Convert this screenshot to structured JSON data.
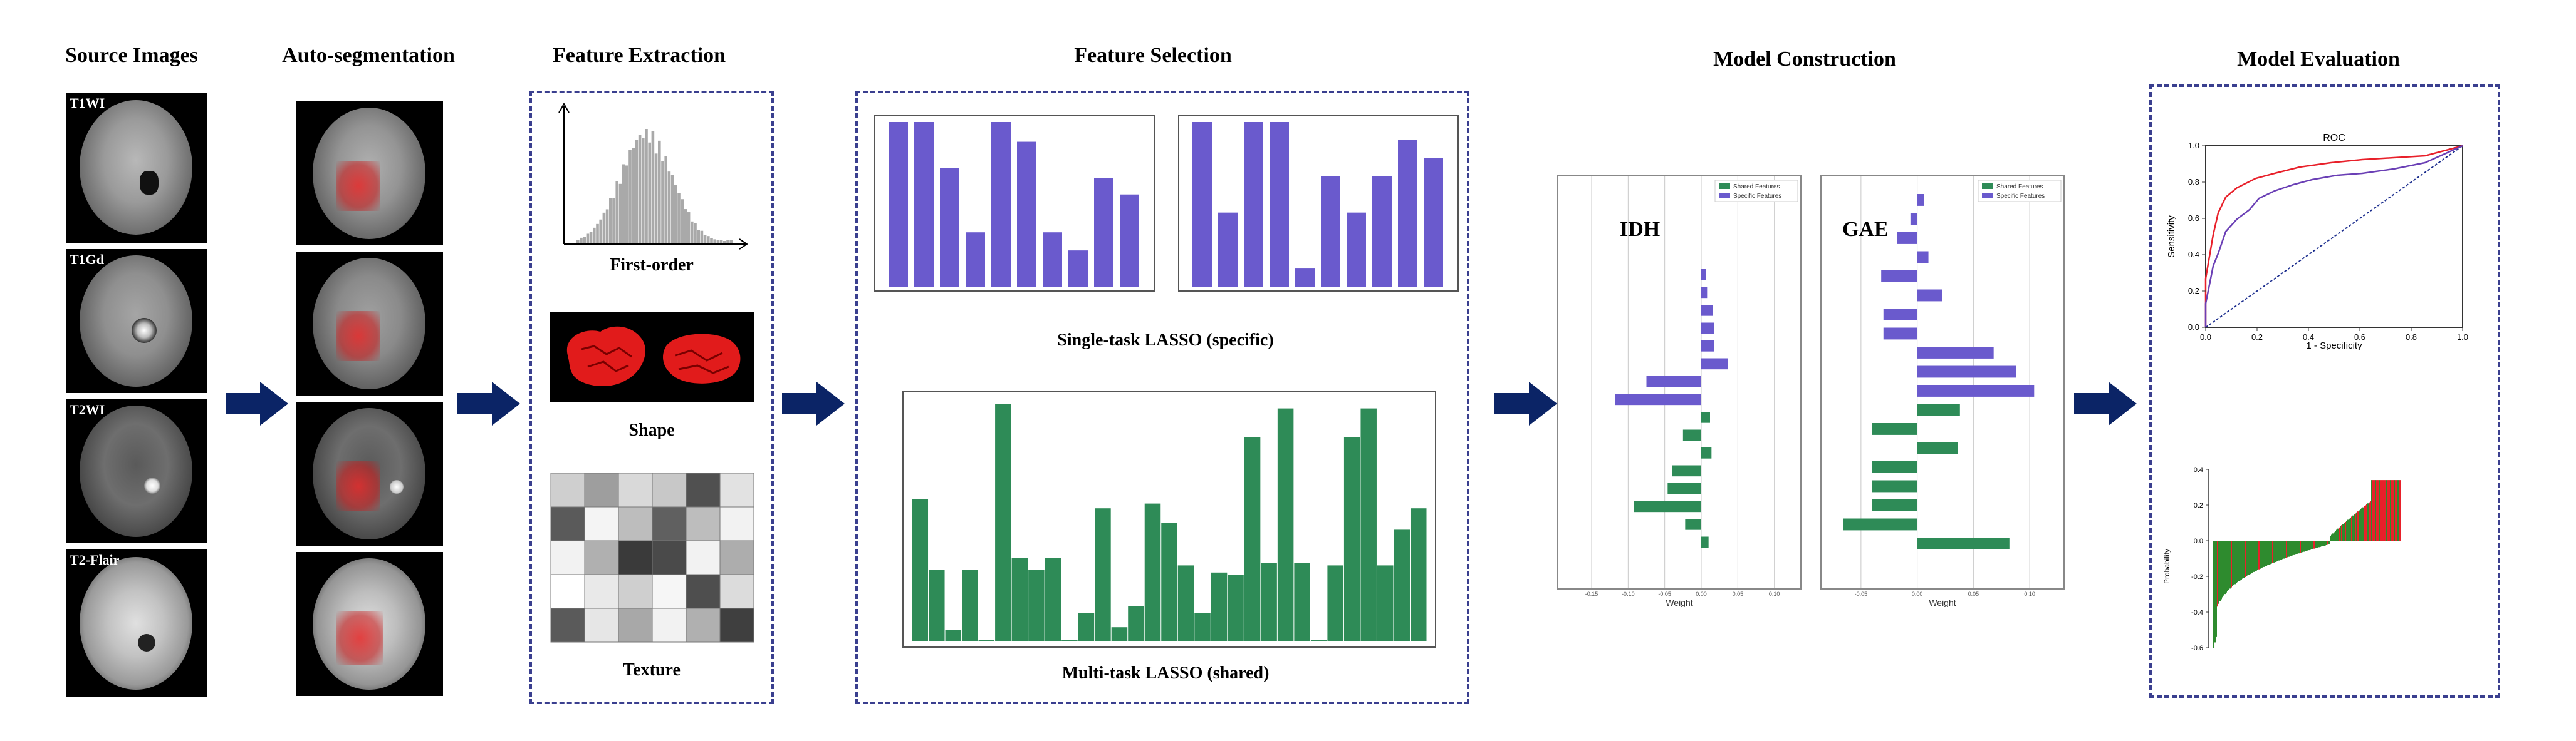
{
  "stages": {
    "source_images": "Source Images",
    "auto_segmentation": "Auto-segmentation",
    "feature_extraction": "Feature Extraction",
    "feature_selection": "Feature Selection",
    "model_construction": "Model Construction",
    "model_evaluation": "Model Evaluation"
  },
  "sequences": [
    "T1WI",
    "T1Gd",
    "T2WI",
    "T2-Flair"
  ],
  "feature_extraction": {
    "first_order": "First-order",
    "shape": "Shape",
    "texture": "Texture"
  },
  "feature_selection": {
    "single_task_label": "Single-task LASSO (specific)",
    "multi_task_label": "Multi-task LASSO (shared)",
    "single_task_left_bars": [
      1.0,
      1.0,
      0.72,
      0.33,
      1.0,
      0.88,
      0.33,
      0.22,
      0.66,
      0.56
    ],
    "single_task_right_bars": [
      1.0,
      0.45,
      1.0,
      1.0,
      0.11,
      0.67,
      0.45,
      0.67,
      0.89,
      0.78
    ],
    "multi_task_bars": [
      0.6,
      0.3,
      0.05,
      0.3,
      0.0,
      1.0,
      0.35,
      0.3,
      0.35,
      0.0,
      0.12,
      0.56,
      0.06,
      0.15,
      0.58,
      0.5,
      0.32,
      0.12,
      0.29,
      0.28,
      0.86,
      0.33,
      0.98,
      0.33,
      0.0,
      0.32,
      0.86,
      0.98,
      0.32,
      0.47,
      0.56
    ]
  },
  "model_construction": {
    "idh_label": "IDH",
    "gae_label": "GAE",
    "legend_shared": "Shared Features",
    "legend_specific": "Specific Features",
    "xlabel": "Weight",
    "idh_ticks": [
      "-0.15",
      "-0.10",
      "-0.05",
      "0.00",
      "0.05",
      "0.10"
    ],
    "gae_ticks": [
      "-0.05",
      "0.00",
      "0.05",
      "0.10"
    ],
    "idh_weights": [
      {
        "v": 0.006,
        "t": "specific"
      },
      {
        "v": 0.008,
        "t": "specific"
      },
      {
        "v": 0.016,
        "t": "specific"
      },
      {
        "v": 0.018,
        "t": "specific"
      },
      {
        "v": 0.018,
        "t": "specific"
      },
      {
        "v": 0.036,
        "t": "specific"
      },
      {
        "v": -0.075,
        "t": "specific"
      },
      {
        "v": -0.118,
        "t": "specific"
      },
      {
        "v": 0.012,
        "t": "shared"
      },
      {
        "v": -0.025,
        "t": "shared"
      },
      {
        "v": 0.014,
        "t": "shared"
      },
      {
        "v": -0.04,
        "t": "shared"
      },
      {
        "v": -0.046,
        "t": "shared"
      },
      {
        "v": -0.092,
        "t": "shared"
      },
      {
        "v": -0.022,
        "t": "shared"
      },
      {
        "v": 0.01,
        "t": "shared"
      }
    ],
    "gae_weights": [
      {
        "v": 0.006,
        "t": "specific"
      },
      {
        "v": -0.006,
        "t": "specific"
      },
      {
        "v": -0.018,
        "t": "specific"
      },
      {
        "v": 0.01,
        "t": "specific"
      },
      {
        "v": -0.032,
        "t": "specific"
      },
      {
        "v": 0.022,
        "t": "specific"
      },
      {
        "v": -0.03,
        "t": "specific"
      },
      {
        "v": -0.03,
        "t": "specific"
      },
      {
        "v": 0.068,
        "t": "specific"
      },
      {
        "v": 0.088,
        "t": "specific"
      },
      {
        "v": 0.104,
        "t": "specific"
      },
      {
        "v": 0.038,
        "t": "shared"
      },
      {
        "v": -0.04,
        "t": "shared"
      },
      {
        "v": 0.036,
        "t": "shared"
      },
      {
        "v": -0.04,
        "t": "shared"
      },
      {
        "v": -0.04,
        "t": "shared"
      },
      {
        "v": -0.04,
        "t": "shared"
      },
      {
        "v": -0.066,
        "t": "shared"
      },
      {
        "v": 0.082,
        "t": "shared"
      }
    ]
  },
  "model_evaluation": {
    "roc_title": "ROC",
    "roc_xlabel": "1 - Specificity",
    "roc_ylabel": "Sensitivity",
    "roc_ticks": [
      "0.0",
      "0.2",
      "0.4",
      "0.6",
      "0.8",
      "1.0"
    ],
    "waterfall_ylabel": "Probability",
    "waterfall_ticks": [
      "0.4",
      "0.2",
      "0.0",
      "-0.2",
      "-0.4",
      "-0.6"
    ],
    "colors": {
      "red": "#e8202a",
      "purple": "#6a3fb5",
      "green": "#2e8b2e"
    }
  },
  "colors": {
    "purple": "#6a5acd",
    "green": "#2e8b57",
    "arrow": "#0b2466",
    "dashed": "#3a3f8f"
  }
}
